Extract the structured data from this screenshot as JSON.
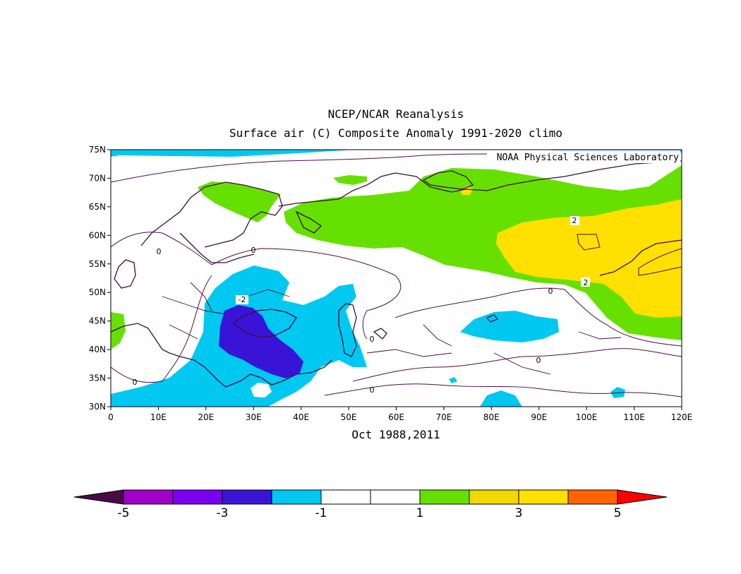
{
  "title_line1": "NCEP/NCAR Reanalysis",
  "title_line2": "Surface air (C) Composite Anomaly 1991-2020 climo",
  "credit": "NOAA Physical Sciences Laboratory",
  "subtitle": "Oct 1988,2011",
  "map": {
    "lon_range": [
      0,
      120
    ],
    "lat_range": [
      30,
      75
    ],
    "lat_ticks": [
      "30N",
      "35N",
      "40N",
      "45N",
      "50N",
      "55N",
      "60N",
      "65N",
      "70N",
      "75N"
    ],
    "lon_ticks": [
      "0",
      "10E",
      "20E",
      "30E",
      "40E",
      "50E",
      "60E",
      "70E",
      "80E",
      "90E",
      "100E",
      "110E",
      "120E"
    ],
    "contour_labels": [
      "-2",
      "0",
      "0",
      "0",
      "0",
      "0",
      "0",
      "2",
      "2",
      "0"
    ],
    "colors": {
      "coastline": "#3d0a3d",
      "contour": "#4a0f4a",
      "below_minus1": "#00c8f0",
      "below_minus3": "#3a14d6",
      "above_1": "#66e000",
      "above_3": "#ffe000"
    }
  },
  "colorbar": {
    "labels": [
      "-5",
      "-3",
      "-1",
      "1",
      "3",
      "5"
    ],
    "colors": [
      "#a000c8",
      "#7a00f0",
      "#3a14d6",
      "#00c8f0",
      "#ffffff",
      "#ffffff",
      "#66e000",
      "#f0d800",
      "#ffe000",
      "#ff6400"
    ],
    "left_arrow_color": "#4a0a4a",
    "right_arrow_color": "#ff0000"
  }
}
